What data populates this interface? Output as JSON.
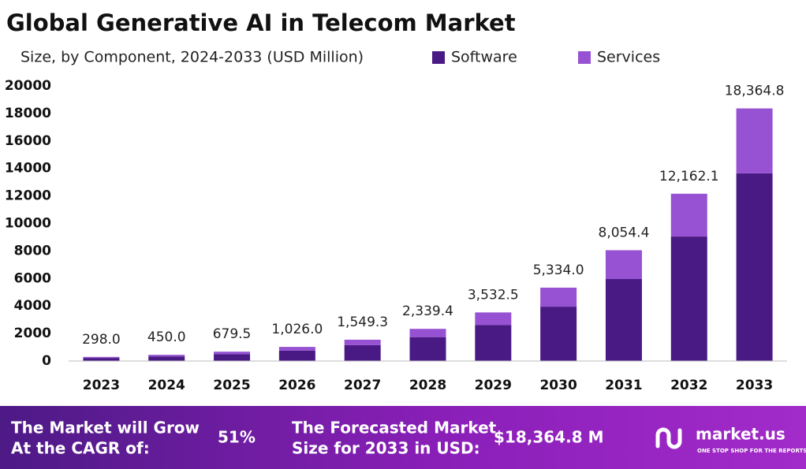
{
  "chart_data": {
    "type": "stacked_bar",
    "title": "Global Generative AI in Telecom Market",
    "subtitle": "Size, by Component, 2024-2033 (USD Million)",
    "categories": [
      "2023",
      "2024",
      "2025",
      "2026",
      "2027",
      "2028",
      "2029",
      "2030",
      "2031",
      "2032",
      "2033"
    ],
    "series": [
      {
        "name": "Software",
        "color": "#4a1a84",
        "values": [
          222,
          335,
          505,
          762,
          1151,
          1739,
          2626,
          3950,
          5960,
          9050,
          13650
        ]
      },
      {
        "name": "Services",
        "color": "#9652d2",
        "values": [
          76,
          115,
          174.5,
          264,
          398.3,
          600.4,
          906.5,
          1384,
          2094.4,
          3112.1,
          4714.8
        ]
      }
    ],
    "total_values": [
      298.0,
      450.0,
      679.5,
      1026.0,
      1549.3,
      2339.4,
      3532.5,
      5334.0,
      8054.4,
      12162.1,
      18364.8
    ],
    "total_value_labels": [
      "298.0",
      "450.0",
      "679.5",
      "1,026.0",
      "1,549.3",
      "2,339.4",
      "3,532.5",
      "5,334.0",
      "8,054.4",
      "12,162.1",
      "18,364.8"
    ],
    "ylim": [
      0,
      20000
    ],
    "yticks": [
      0,
      2000,
      4000,
      6000,
      8000,
      10000,
      12000,
      14000,
      16000,
      18000,
      20000
    ],
    "grid": false,
    "legend": "top-right"
  },
  "banner": {
    "cagr_text": [
      "The Market will Grow",
      "At the CAGR of:"
    ],
    "cagr_value": "51%",
    "forecast_text": [
      "The Forecasted Market",
      "Size for 2033 in USD:"
    ],
    "forecast_value": "$18,364.8 M",
    "brand": "market.us",
    "tagline": "ONE STOP SHOP FOR THE REPORTS"
  }
}
